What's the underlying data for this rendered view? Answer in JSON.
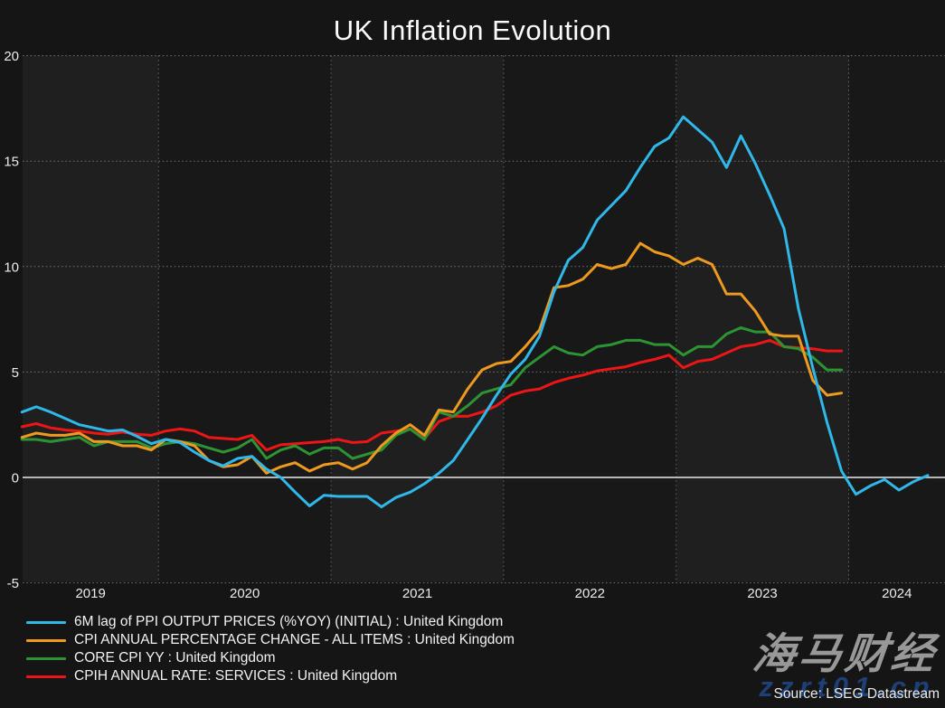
{
  "title": "UK Inflation Evolution",
  "source": "Source: LSEG Datastream",
  "watermark": {
    "brand": "海马财经",
    "url": "zzrt01.cn"
  },
  "colors": {
    "background": "#151515",
    "band_light": "#1f1f20",
    "band_dark": "#181819",
    "grid_horizontal": "#757575",
    "grid_vertical": "#646464",
    "zero_line": "#cdcdcd",
    "tick_text": "#ececec"
  },
  "chart_data": {
    "type": "line",
    "title": "UK Inflation Evolution",
    "xlabel": "",
    "ylabel": "",
    "ylim": [
      -5,
      20
    ],
    "grid": "dotted",
    "legend_position": "bottom-left",
    "x_start": "2019-03",
    "frequency": "monthly",
    "x_tick_labels": [
      "2019",
      "2020",
      "2021",
      "2022",
      "2023",
      "2024"
    ],
    "y_ticks": [
      "20",
      "15",
      "10",
      "5",
      "0",
      "-5"
    ],
    "y_tick_values": [
      20,
      15,
      10,
      5,
      0,
      -5
    ],
    "series": [
      {
        "id": "ppi-6m-lag",
        "name": "6M lag of PPI OUTPUT PRICES (%YOY) (INITIAL) : United Kingdom",
        "color": "#2fb8e9",
        "values": [
          3.1,
          3.35,
          3.1,
          2.8,
          2.5,
          2.35,
          2.2,
          2.25,
          1.95,
          1.6,
          1.8,
          1.65,
          1.2,
          0.8,
          0.55,
          0.9,
          1.0,
          0.4,
          0.0,
          -0.7,
          -1.35,
          -0.85,
          -0.9,
          -0.9,
          -0.9,
          -1.4,
          -0.95,
          -0.7,
          -0.3,
          0.2,
          0.8,
          1.8,
          2.8,
          3.9,
          4.9,
          5.6,
          6.7,
          8.8,
          10.3,
          10.9,
          12.2,
          12.9,
          13.6,
          14.7,
          15.7,
          16.1,
          17.1,
          16.5,
          15.9,
          14.7,
          16.2,
          14.9,
          13.4,
          11.8,
          8.0,
          5.2,
          2.6,
          0.3,
          -0.8,
          -0.4,
          -0.1,
          -0.6,
          -0.2,
          0.1
        ]
      },
      {
        "id": "cpi-all-items",
        "name": "CPI ANNUAL PERCENTAGE CHANGE - ALL ITEMS : United Kingdom",
        "color": "#ed9a1f",
        "values": [
          1.9,
          2.1,
          2.0,
          2.0,
          2.1,
          1.7,
          1.7,
          1.5,
          1.5,
          1.3,
          1.8,
          1.7,
          1.5,
          0.8,
          0.5,
          0.6,
          1.0,
          0.2,
          0.5,
          0.7,
          0.3,
          0.6,
          0.7,
          0.4,
          0.7,
          1.5,
          2.1,
          2.5,
          2.0,
          3.2,
          3.1,
          4.2,
          5.1,
          5.4,
          5.5,
          6.2,
          7.0,
          9.0,
          9.1,
          9.4,
          10.1,
          9.9,
          10.1,
          11.1,
          10.7,
          10.5,
          10.1,
          10.4,
          10.1,
          8.7,
          8.7,
          7.9,
          6.8,
          6.7,
          6.7,
          4.6,
          3.9,
          4.0
        ]
      },
      {
        "id": "core-cpi",
        "name": "CORE CPI YY : United Kingdom",
        "color": "#2d9432",
        "values": [
          1.8,
          1.8,
          1.7,
          1.8,
          1.9,
          1.5,
          1.7,
          1.7,
          1.7,
          1.4,
          1.6,
          1.7,
          1.6,
          1.4,
          1.2,
          1.4,
          1.8,
          0.9,
          1.3,
          1.5,
          1.1,
          1.4,
          1.4,
          0.9,
          1.1,
          1.3,
          2.0,
          2.3,
          1.8,
          3.1,
          2.9,
          3.4,
          4.0,
          4.2,
          4.4,
          5.2,
          5.7,
          6.2,
          5.9,
          5.8,
          6.2,
          6.3,
          6.5,
          6.5,
          6.3,
          6.3,
          5.8,
          6.2,
          6.2,
          6.8,
          7.1,
          6.9,
          6.9,
          6.2,
          6.1,
          5.7,
          5.1,
          5.1
        ]
      },
      {
        "id": "cpih-services",
        "name": "CPIH ANNUAL RATE: SERVICES : United Kingdom",
        "color": "#ed1515",
        "values": [
          2.4,
          2.55,
          2.35,
          2.25,
          2.2,
          2.1,
          2.05,
          2.15,
          2.05,
          2.0,
          2.2,
          2.3,
          2.2,
          1.9,
          1.85,
          1.8,
          2.0,
          1.3,
          1.55,
          1.6,
          1.65,
          1.7,
          1.8,
          1.65,
          1.7,
          2.1,
          2.2,
          2.3,
          1.85,
          2.65,
          2.9,
          2.9,
          3.1,
          3.4,
          3.9,
          4.1,
          4.2,
          4.5,
          4.7,
          4.85,
          5.05,
          5.15,
          5.25,
          5.45,
          5.6,
          5.8,
          5.2,
          5.5,
          5.6,
          5.9,
          6.2,
          6.3,
          6.5,
          6.2,
          6.15,
          6.1,
          6.0,
          6.0
        ]
      }
    ]
  }
}
